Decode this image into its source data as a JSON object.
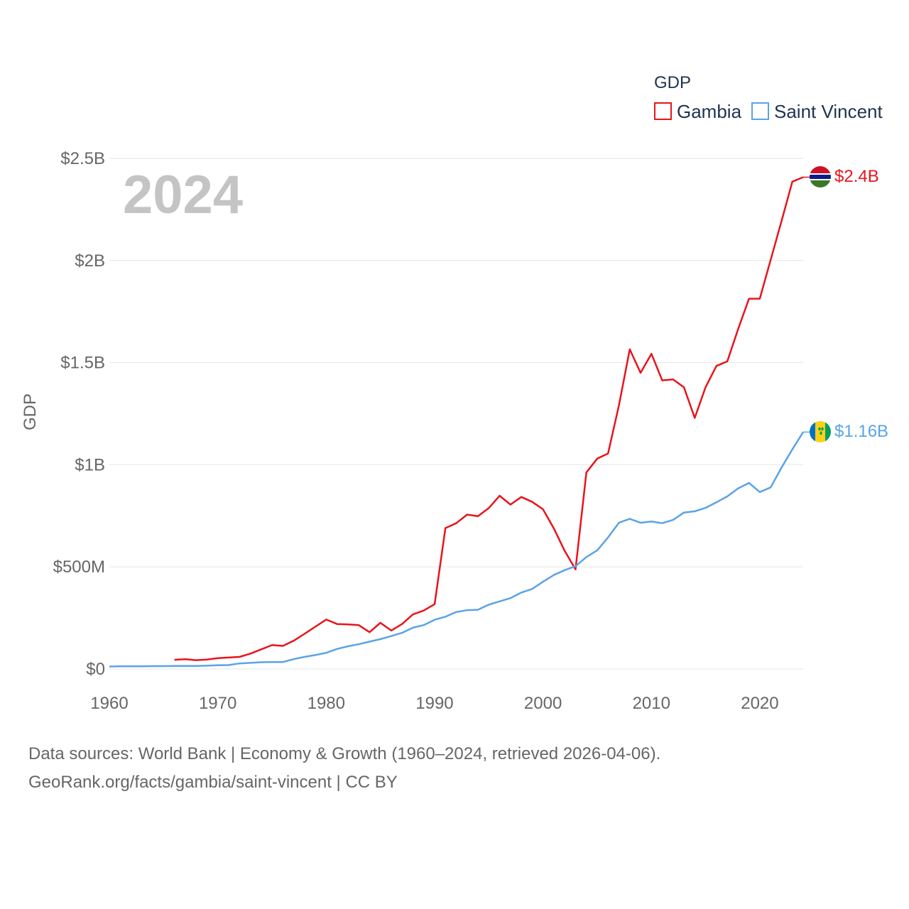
{
  "chart_data": {
    "type": "line",
    "title": "",
    "year_label": "2024",
    "ylabel": "GDP",
    "xlabel": "",
    "xlim": [
      1960,
      2024
    ],
    "ylim": [
      0,
      2500000000
    ],
    "x_ticks": [
      1960,
      1970,
      1980,
      1990,
      2000,
      2010,
      2020
    ],
    "x_tick_labels": [
      "1960",
      "1970",
      "1980",
      "1990",
      "2000",
      "2010",
      "2020"
    ],
    "y_ticks": [
      0,
      500000000,
      1000000000,
      1500000000,
      2000000000,
      2500000000
    ],
    "y_tick_labels": [
      "$0",
      "$500M",
      "$1B",
      "$1.5B",
      "$2B",
      "$2.5B"
    ],
    "grid": true,
    "legend": {
      "title": "GDP",
      "position": "top-right"
    },
    "series": [
      {
        "name": "Gambia",
        "color": "#e8141c",
        "end_label": "$2.4B",
        "flag": "gambia-flag",
        "x": [
          1966,
          1967,
          1968,
          1969,
          1970,
          1971,
          1972,
          1973,
          1974,
          1975,
          1976,
          1977,
          1978,
          1979,
          1980,
          1981,
          1982,
          1983,
          1984,
          1985,
          1986,
          1987,
          1988,
          1989,
          1990,
          1991,
          1992,
          1993,
          1994,
          1995,
          1996,
          1997,
          1998,
          1999,
          2000,
          2001,
          2002,
          2003,
          2004,
          2005,
          2006,
          2007,
          2008,
          2009,
          2010,
          2011,
          2012,
          2013,
          2014,
          2015,
          2016,
          2017,
          2018,
          2019,
          2020,
          2021,
          2022,
          2023,
          2024
        ],
        "values": [
          45000000,
          48000000,
          43000000,
          46000000,
          53000000,
          56000000,
          59000000,
          75000000,
          96000000,
          117000000,
          113000000,
          138000000,
          172000000,
          207000000,
          242000000,
          220000000,
          218000000,
          215000000,
          180000000,
          226000000,
          188000000,
          220000000,
          267000000,
          286000000,
          317000000,
          690000000,
          714000000,
          756000000,
          748000000,
          788000000,
          848000000,
          805000000,
          842000000,
          818000000,
          782000000,
          688000000,
          578000000,
          488000000,
          962000000,
          1030000000,
          1055000000,
          1290000000,
          1565000000,
          1450000000,
          1543000000,
          1413000000,
          1418000000,
          1379000000,
          1229000000,
          1380000000,
          1484000000,
          1506000000,
          1664000000,
          1813000000,
          1813000000,
          2003000000,
          2193000000,
          2386000000,
          2408000000
        ]
      },
      {
        "name": "Saint Vincent",
        "color": "#5ba3e6",
        "end_label": "$1.16B",
        "flag": "saint-vincent-flag",
        "x": [
          1960,
          1961,
          1962,
          1963,
          1964,
          1965,
          1966,
          1967,
          1968,
          1969,
          1970,
          1971,
          1972,
          1973,
          1974,
          1975,
          1976,
          1977,
          1978,
          1979,
          1980,
          1981,
          1982,
          1983,
          1984,
          1985,
          1986,
          1987,
          1988,
          1989,
          1990,
          1991,
          1992,
          1993,
          1994,
          1995,
          1996,
          1997,
          1998,
          1999,
          2000,
          2001,
          2002,
          2003,
          2004,
          2005,
          2006,
          2007,
          2008,
          2009,
          2010,
          2011,
          2012,
          2013,
          2014,
          2015,
          2016,
          2017,
          2018,
          2019,
          2020,
          2021,
          2022,
          2023,
          2024
        ],
        "values": [
          12000000,
          13000000,
          13000000,
          13000000,
          14000000,
          14000000,
          15000000,
          15000000,
          15000000,
          16000000,
          18000000,
          19000000,
          27000000,
          30000000,
          33000000,
          34000000,
          34000000,
          48000000,
          59000000,
          68000000,
          79000000,
          98000000,
          111000000,
          121000000,
          134000000,
          146000000,
          161000000,
          177000000,
          202000000,
          215000000,
          241000000,
          256000000,
          279000000,
          288000000,
          290000000,
          315000000,
          331000000,
          347000000,
          374000000,
          392000000,
          427000000,
          460000000,
          484000000,
          503000000,
          548000000,
          581000000,
          644000000,
          716000000,
          735000000,
          716000000,
          722000000,
          714000000,
          730000000,
          766000000,
          772000000,
          789000000,
          816000000,
          845000000,
          884000000,
          911000000,
          866000000,
          889000000,
          986000000,
          1075000000,
          1160000000
        ]
      }
    ]
  },
  "source": {
    "line1": "Data sources: World Bank | Economy & Growth (1960–2024, retrieved 2026-04-06).",
    "line2": "GeoRank.org/facts/gambia/saint-vincent | CC BY"
  }
}
